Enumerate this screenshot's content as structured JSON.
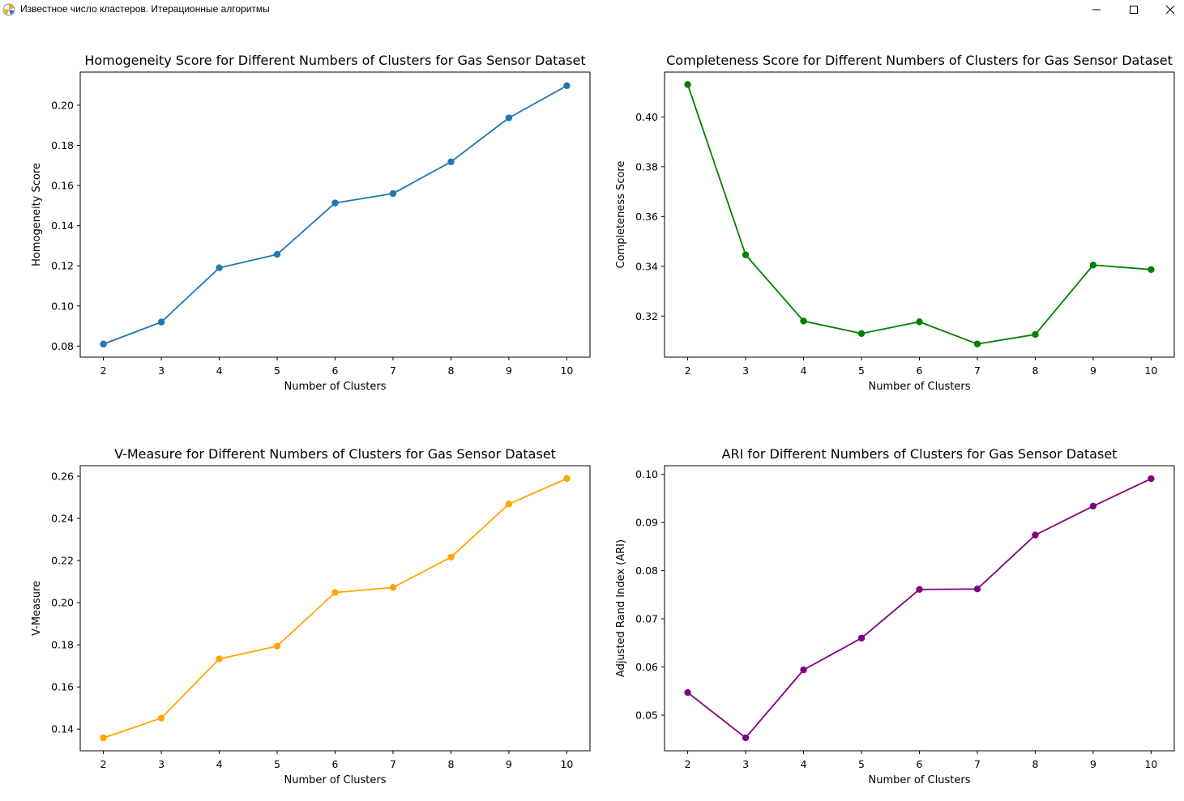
{
  "window": {
    "title": "Известное число кластеров. Итерационные алгоритмы",
    "icon": "matplotlib-icon",
    "controls": [
      "minimize-icon",
      "maximize-icon",
      "close-icon"
    ]
  },
  "chart_data": [
    {
      "type": "line",
      "title": "Homogeneity Score for Different Numbers of Clusters for Gas Sensor Dataset",
      "xlabel": "Number of Clusters",
      "ylabel": "Homogeneity Score",
      "x": [
        2,
        3,
        4,
        5,
        6,
        7,
        8,
        9,
        10
      ],
      "series": [
        {
          "values": [
            0.081,
            0.092,
            0.119,
            0.1257,
            0.1513,
            0.156,
            0.1718,
            0.1937,
            0.2097
          ],
          "color": "#1f77b4",
          "marker": "circle"
        }
      ],
      "xlim": [
        1.6,
        10.4
      ],
      "ylim": [
        0.0745,
        0.2165
      ],
      "yticks": [
        0.08,
        0.1,
        0.12,
        0.14,
        0.16,
        0.18,
        0.2
      ],
      "ytick_labels": [
        "0.08",
        "0.10",
        "0.12",
        "0.14",
        "0.16",
        "0.18",
        "0.20"
      ],
      "xticks": [
        2,
        3,
        4,
        5,
        6,
        7,
        8,
        9,
        10
      ],
      "xtick_labels": [
        "2",
        "3",
        "4",
        "5",
        "6",
        "7",
        "8",
        "9",
        "10"
      ],
      "grid": false
    },
    {
      "type": "line",
      "title": "Completeness Score for Different Numbers of Clusters for Gas Sensor Dataset",
      "xlabel": "Number of Clusters",
      "ylabel": "Completeness Score",
      "x": [
        2,
        3,
        4,
        5,
        6,
        7,
        8,
        9,
        10
      ],
      "series": [
        {
          "values": [
            0.413,
            0.3446,
            0.318,
            0.313,
            0.3177,
            0.3088,
            0.3126,
            0.3405,
            0.3387
          ],
          "color": "#008000",
          "marker": "circle"
        }
      ],
      "xlim": [
        1.6,
        10.4
      ],
      "ylim": [
        0.3035,
        0.418
      ],
      "yticks": [
        0.32,
        0.34,
        0.36,
        0.38,
        0.4
      ],
      "ytick_labels": [
        "0.32",
        "0.34",
        "0.36",
        "0.38",
        "0.40"
      ],
      "xticks": [
        2,
        3,
        4,
        5,
        6,
        7,
        8,
        9,
        10
      ],
      "xtick_labels": [
        "2",
        "3",
        "4",
        "5",
        "6",
        "7",
        "8",
        "9",
        "10"
      ],
      "grid": false
    },
    {
      "type": "line",
      "title": "V-Measure for Different Numbers of Clusters for Gas Sensor Dataset",
      "xlabel": "Number of Clusters",
      "ylabel": "V-Measure",
      "x": [
        2,
        3,
        4,
        5,
        6,
        7,
        8,
        9,
        10
      ],
      "series": [
        {
          "values": [
            0.1358,
            0.1452,
            0.1733,
            0.1794,
            0.2048,
            0.2072,
            0.2216,
            0.2468,
            0.2589
          ],
          "color": "#ffa500",
          "marker": "circle"
        }
      ],
      "xlim": [
        1.6,
        10.4
      ],
      "ylim": [
        0.1297,
        0.265
      ],
      "yticks": [
        0.14,
        0.16,
        0.18,
        0.2,
        0.22,
        0.24,
        0.26
      ],
      "ytick_labels": [
        "0.14",
        "0.16",
        "0.18",
        "0.20",
        "0.22",
        "0.24",
        "0.26"
      ],
      "xticks": [
        2,
        3,
        4,
        5,
        6,
        7,
        8,
        9,
        10
      ],
      "xtick_labels": [
        "2",
        "3",
        "4",
        "5",
        "6",
        "7",
        "8",
        "9",
        "10"
      ],
      "grid": false
    },
    {
      "type": "line",
      "title": "ARI for Different Numbers of Clusters for Gas Sensor Dataset",
      "xlabel": "Number of Clusters",
      "ylabel": "Adjusted Rand Index (ARI)",
      "x": [
        2,
        3,
        4,
        5,
        6,
        7,
        8,
        9,
        10
      ],
      "series": [
        {
          "values": [
            0.0547,
            0.0453,
            0.0594,
            0.066,
            0.0761,
            0.0762,
            0.0874,
            0.0934,
            0.0991
          ],
          "color": "#800080",
          "marker": "circle"
        }
      ],
      "xlim": [
        1.6,
        10.4
      ],
      "ylim": [
        0.0426,
        0.1018
      ],
      "yticks": [
        0.05,
        0.06,
        0.07,
        0.08,
        0.09,
        0.1
      ],
      "ytick_labels": [
        "0.05",
        "0.06",
        "0.07",
        "0.08",
        "0.09",
        "0.10"
      ],
      "xticks": [
        2,
        3,
        4,
        5,
        6,
        7,
        8,
        9,
        10
      ],
      "xtick_labels": [
        "2",
        "3",
        "4",
        "5",
        "6",
        "7",
        "8",
        "9",
        "10"
      ],
      "grid": false
    }
  ]
}
